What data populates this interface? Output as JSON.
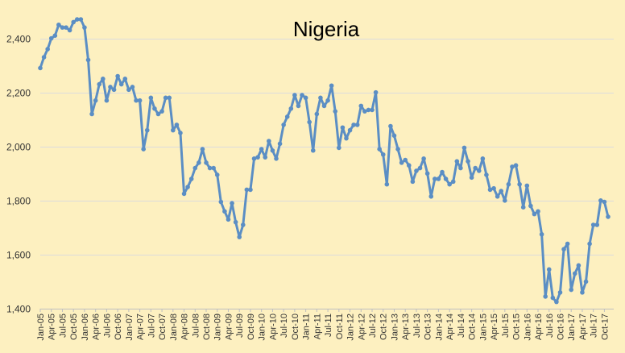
{
  "chart_data": {
    "type": "line",
    "title": "Nigeria",
    "xlabel": "",
    "ylabel": "",
    "ylim": [
      1400,
      2500
    ],
    "yticks": [
      1400,
      1600,
      1800,
      2000,
      2200,
      2400
    ],
    "ytick_labels": [
      "1,400",
      "1,600",
      "1,800",
      "2,000",
      "2,200",
      "2,400"
    ],
    "xtick_labels": [
      "Jan-05",
      "Apr-05",
      "Jul-05",
      "Oct-05",
      "Jan-06",
      "Apr-06",
      "Jul-06",
      "Oct-06",
      "Jan-07",
      "Apr-07",
      "Jul-07",
      "Oct-07",
      "Jan-08",
      "Apr-08",
      "Jul-08",
      "Oct-08",
      "Jan-09",
      "Apr-09",
      "Jul-09",
      "Oct-09",
      "Jan-10",
      "Apr-10",
      "Jul-10",
      "Oct-10",
      "Jan-11",
      "Apr-11",
      "Jul-11",
      "Oct-11",
      "Jan-12",
      "Apr-12",
      "Jul-12",
      "Oct-12",
      "Jan-13",
      "Apr-13",
      "Jul-13",
      "Oct-13",
      "Jan-14",
      "Apr-14",
      "Jul-14",
      "Oct-14",
      "Jan-15",
      "Apr-15",
      "Jul-15",
      "Oct-15",
      "Jan-16",
      "Apr-16",
      "Jul-16",
      "Oct-16",
      "Jan-17",
      "Apr-17",
      "Jul-17",
      "Oct-17"
    ],
    "grid": true,
    "legend": "none",
    "line_color": "#5b8ec4",
    "series": [
      {
        "values": [
          2290,
          2330,
          2360,
          2400,
          2410,
          2450,
          2440,
          2440,
          2430,
          2460,
          2470,
          2470,
          2440,
          2320,
          2120,
          2170,
          2230,
          2250,
          2170,
          2220,
          2210,
          2260,
          2230,
          2250,
          2210,
          2220,
          2170,
          2170,
          1990,
          2060,
          2180,
          2140,
          2120,
          2130,
          2180,
          2180,
          2060,
          2080,
          2050,
          1825,
          1850,
          1880,
          1920,
          1940,
          1990,
          1940,
          1920,
          1920,
          1895,
          1795,
          1760,
          1730,
          1790,
          1720,
          1665,
          1710,
          1840,
          1840,
          1955,
          1960,
          1990,
          1960,
          2020,
          1985,
          1955,
          2010,
          2080,
          2110,
          2140,
          2190,
          2150,
          2190,
          2180,
          2090,
          1985,
          2120,
          2180,
          2150,
          2170,
          2225,
          2130,
          1995,
          2070,
          2030,
          2060,
          2080,
          2080,
          2150,
          2130,
          2135,
          2135,
          2200,
          1990,
          1970,
          1860,
          2075,
          2040,
          1990,
          1940,
          1950,
          1930,
          1870,
          1910,
          1920,
          1955,
          1900,
          1815,
          1880,
          1880,
          1905,
          1880,
          1860,
          1870,
          1945,
          1920,
          1995,
          1945,
          1885,
          1920,
          1910,
          1955,
          1895,
          1840,
          1845,
          1815,
          1835,
          1800,
          1860,
          1925,
          1930,
          1860,
          1775,
          1855,
          1780,
          1750,
          1760,
          1675,
          1445,
          1545,
          1440,
          1425,
          1460,
          1620,
          1640,
          1470,
          1530,
          1560,
          1460,
          1500,
          1640,
          1710,
          1710,
          1800,
          1795,
          1740
        ]
      }
    ]
  }
}
